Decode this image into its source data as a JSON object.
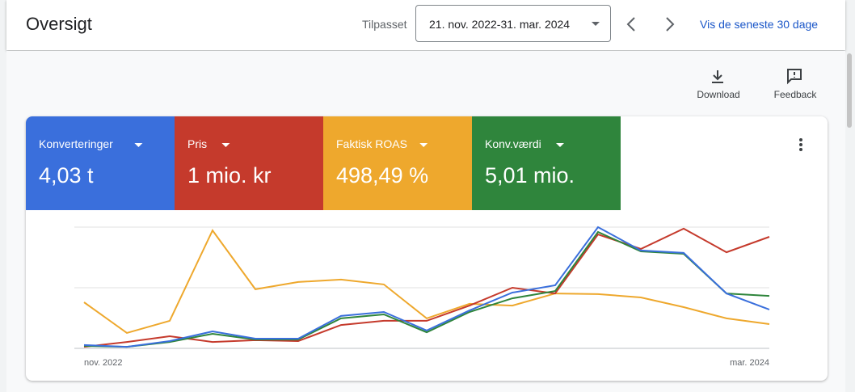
{
  "header": {
    "title": "Oversigt",
    "date_label": "Tilpasset",
    "date_range": "21. nov. 2022-31. mar. 2024",
    "link": "Vis de seneste 30 dage"
  },
  "actions": [
    "Download",
    "Feedback"
  ],
  "chart_data": {
    "type": "line",
    "categories": [
      "nov. 2022",
      null,
      null,
      null,
      null,
      null,
      null,
      null,
      null,
      null,
      null,
      null,
      null,
      null,
      null,
      null,
      "mar. 2024"
    ],
    "ylim": [
      0,
      100
    ],
    "yticks": [
      0,
      50,
      100
    ],
    "grid": true,
    "series": [
      {
        "name": "Konverteringer",
        "summary": "4,03 t",
        "color": "#3a6fdc",
        "values": [
          2.7,
          1.3,
          6,
          14,
          8,
          8,
          26.7,
          30,
          14.7,
          31.3,
          46,
          52,
          100,
          80.7,
          78.7,
          45.3,
          32
        ]
      },
      {
        "name": "Pris",
        "summary": "1 mio. kr",
        "color": "#c53a2c",
        "values": [
          1.3,
          5.3,
          10,
          5.3,
          6.7,
          6,
          19.3,
          22.7,
          22.7,
          35.3,
          50,
          45.3,
          94,
          82,
          98.7,
          79.3,
          92
        ]
      },
      {
        "name": "Faktisk ROAS",
        "summary": "498,49 %",
        "color": "#eea82d",
        "values": [
          38,
          12.7,
          22.7,
          97.3,
          48.7,
          54.7,
          56.7,
          52.7,
          24.7,
          36.7,
          35.3,
          45.3,
          44.7,
          42,
          34,
          24.7,
          20
        ]
      },
      {
        "name": "Konv.værdi",
        "summary": "5,01 mio.",
        "color": "#2f853c",
        "values": [
          2,
          1.3,
          5.3,
          12,
          7.3,
          7.3,
          24.7,
          28,
          13.3,
          30,
          41.3,
          47.3,
          96,
          80,
          78,
          45.3,
          43.3
        ]
      }
    ]
  }
}
